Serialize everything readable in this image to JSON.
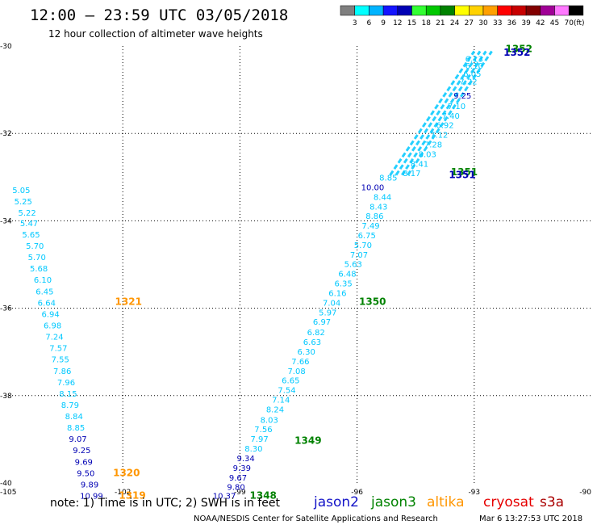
{
  "header": {
    "title": "12:00 – 23:59 UTC 03/05/2018",
    "subtitle": "12 hour collection of altimeter wave heights"
  },
  "colorbar": {
    "unit": "(ft)",
    "labels": [
      "3",
      "6",
      "9",
      "12",
      "15",
      "18",
      "21",
      "24",
      "27",
      "30",
      "33",
      "36",
      "39",
      "42",
      "45",
      "70"
    ],
    "colors": [
      "#7f7f7f",
      "#00ffff",
      "#00b4ff",
      "#1414ff",
      "#0000b4",
      "#32ff32",
      "#00c800",
      "#008200",
      "#ffff00",
      "#ffd200",
      "#ffa000",
      "#ff0000",
      "#c80000",
      "#820000",
      "#a00096",
      "#ff78ff",
      "#000000"
    ]
  },
  "footer": {
    "note": "note: 1) Time is in UTC; 2) SWH is in feet",
    "credit": "NOAA/NESDIS Center for Satellite Applications and Research",
    "timestamp": "Mar  6 13:27:53 UTC 2018"
  },
  "legend": [
    {
      "name": "jason2",
      "color": "#1414c8"
    },
    {
      "name": "jason3",
      "color": "#008200"
    },
    {
      "name": "altika",
      "color": "#ff9600"
    },
    {
      "name": "cryosat",
      "color": "#e60000"
    },
    {
      "name": "s3a",
      "color": "#aa0000"
    }
  ],
  "chart_data": {
    "type": "scatter",
    "xlim": [
      -105,
      -90
    ],
    "ylim": [
      -40,
      -30
    ],
    "x_ticks": [
      "-105",
      "-102",
      "-99",
      "-96",
      "-93",
      "-90"
    ],
    "y_ticks": [
      "-30",
      "-32",
      "-34",
      "-36",
      "-38",
      "-40"
    ],
    "grid": "dotted at -102, -99, -96, -93 and -32, -34, -36, -38",
    "colors": {
      "cyan": "#00c8ff",
      "blue": "#0000b4",
      "green": "#008200",
      "orange": "#ff9600"
    },
    "track_west": [
      {
        "lon": -104.6,
        "lat": -33.36,
        "value": "5.05",
        "c": "cyan"
      },
      {
        "lon": -104.55,
        "lat": -33.62,
        "value": "5.25",
        "c": "cyan"
      },
      {
        "lon": -104.45,
        "lat": -33.88,
        "value": "5.22",
        "c": "cyan"
      },
      {
        "lon": -104.4,
        "lat": -34.12,
        "value": "5.47",
        "c": "cyan"
      },
      {
        "lon": -104.35,
        "lat": -34.38,
        "value": "5.65",
        "c": "cyan"
      },
      {
        "lon": -104.25,
        "lat": -34.64,
        "value": "5.70",
        "c": "cyan"
      },
      {
        "lon": -104.2,
        "lat": -34.9,
        "value": "5.70",
        "c": "cyan"
      },
      {
        "lon": -104.15,
        "lat": -35.16,
        "value": "5.68",
        "c": "cyan"
      },
      {
        "lon": -104.05,
        "lat": -35.42,
        "value": "6.10",
        "c": "cyan"
      },
      {
        "lon": -104.0,
        "lat": -35.68,
        "value": "6.45",
        "c": "cyan"
      },
      {
        "lon": -103.95,
        "lat": -35.94,
        "value": "6.64",
        "c": "cyan"
      },
      {
        "lon": -103.85,
        "lat": -36.2,
        "value": "6.94",
        "c": "cyan"
      },
      {
        "lon": -103.8,
        "lat": -36.46,
        "value": "6.98",
        "c": "cyan"
      },
      {
        "lon": -103.75,
        "lat": -36.72,
        "value": "7.24",
        "c": "cyan"
      },
      {
        "lon": -103.65,
        "lat": -36.98,
        "value": "7.57",
        "c": "cyan"
      },
      {
        "lon": -103.6,
        "lat": -37.24,
        "value": "7.55",
        "c": "cyan"
      },
      {
        "lon": -103.55,
        "lat": -37.5,
        "value": "7.86",
        "c": "cyan"
      },
      {
        "lon": -103.45,
        "lat": -37.76,
        "value": "7.96",
        "c": "cyan"
      },
      {
        "lon": -103.4,
        "lat": -38.02,
        "value": "8.15",
        "c": "cyan"
      },
      {
        "lon": -103.35,
        "lat": -38.28,
        "value": "8.79",
        "c": "cyan"
      },
      {
        "lon": -103.25,
        "lat": -38.54,
        "value": "8.84",
        "c": "cyan"
      },
      {
        "lon": -103.2,
        "lat": -38.8,
        "value": "8.85",
        "c": "cyan"
      },
      {
        "lon": -103.15,
        "lat": -39.06,
        "value": "9.07",
        "c": "blue"
      },
      {
        "lon": -103.05,
        "lat": -39.32,
        "value": "9.25",
        "c": "blue"
      },
      {
        "lon": -103.0,
        "lat": -39.58,
        "value": "9.69",
        "c": "blue"
      },
      {
        "lon": -102.95,
        "lat": -39.84,
        "value": "9.50",
        "c": "blue"
      },
      {
        "lon": -102.85,
        "lat": -40.1,
        "value": "9.89",
        "c": "blue"
      },
      {
        "lon": -102.8,
        "lat": -40.36,
        "value": "10.99",
        "c": "blue"
      }
    ],
    "track_east": [
      {
        "lon": -99.4,
        "lat": -40.36,
        "value": "10.37",
        "c": "blue"
      },
      {
        "lon": -99.1,
        "lat": -40.16,
        "value": "9.80",
        "c": "blue"
      },
      {
        "lon": -99.05,
        "lat": -39.94,
        "value": "9.67",
        "c": "blue"
      },
      {
        "lon": -98.95,
        "lat": -39.72,
        "value": "9.39",
        "c": "blue"
      },
      {
        "lon": -98.85,
        "lat": -39.5,
        "value": "9.34",
        "c": "blue"
      },
      {
        "lon": -98.65,
        "lat": -39.28,
        "value": "8.30",
        "c": "cyan"
      },
      {
        "lon": -98.5,
        "lat": -39.06,
        "value": "7.97",
        "c": "cyan"
      },
      {
        "lon": -98.4,
        "lat": -38.84,
        "value": "7.56",
        "c": "cyan"
      },
      {
        "lon": -98.25,
        "lat": -38.62,
        "value": "8.03",
        "c": "cyan"
      },
      {
        "lon": -98.1,
        "lat": -38.38,
        "value": "8.24",
        "c": "cyan"
      },
      {
        "lon": -97.95,
        "lat": -38.16,
        "value": "7.14",
        "c": "cyan"
      },
      {
        "lon": -97.8,
        "lat": -37.94,
        "value": "7.54",
        "c": "cyan"
      },
      {
        "lon": -97.7,
        "lat": -37.72,
        "value": "6.65",
        "c": "cyan"
      },
      {
        "lon": -97.55,
        "lat": -37.5,
        "value": "7.08",
        "c": "cyan"
      },
      {
        "lon": -97.45,
        "lat": -37.28,
        "value": "7.66",
        "c": "cyan"
      },
      {
        "lon": -97.3,
        "lat": -37.06,
        "value": "6.30",
        "c": "cyan"
      },
      {
        "lon": -97.15,
        "lat": -36.84,
        "value": "6.63",
        "c": "cyan"
      },
      {
        "lon": -97.05,
        "lat": -36.62,
        "value": "6.82",
        "c": "cyan"
      },
      {
        "lon": -96.9,
        "lat": -36.38,
        "value": "6.97",
        "c": "cyan"
      },
      {
        "lon": -96.75,
        "lat": -36.16,
        "value": "5.97",
        "c": "cyan"
      },
      {
        "lon": -96.65,
        "lat": -35.94,
        "value": "7.04",
        "c": "cyan"
      },
      {
        "lon": -96.5,
        "lat": -35.72,
        "value": "6.16",
        "c": "cyan"
      },
      {
        "lon": -96.35,
        "lat": -35.5,
        "value": "6.35",
        "c": "cyan"
      },
      {
        "lon": -96.25,
        "lat": -35.28,
        "value": "6.48",
        "c": "cyan"
      },
      {
        "lon": -96.1,
        "lat": -35.06,
        "value": "5.63",
        "c": "cyan"
      },
      {
        "lon": -95.95,
        "lat": -34.84,
        "value": "7.07",
        "c": "cyan"
      },
      {
        "lon": -95.85,
        "lat": -34.62,
        "value": "5.70",
        "c": "cyan"
      },
      {
        "lon": -95.75,
        "lat": -34.4,
        "value": "6.75",
        "c": "cyan"
      },
      {
        "lon": -95.65,
        "lat": -34.18,
        "value": "7.49",
        "c": "cyan"
      },
      {
        "lon": -95.55,
        "lat": -33.96,
        "value": "8.86",
        "c": "cyan"
      },
      {
        "lon": -95.45,
        "lat": -33.74,
        "value": "8.43",
        "c": "cyan"
      },
      {
        "lon": -95.35,
        "lat": -33.52,
        "value": "8.44",
        "c": "cyan"
      },
      {
        "lon": -95.6,
        "lat": -33.3,
        "value": "10.00",
        "c": "blue"
      },
      {
        "lon": -95.2,
        "lat": -33.08,
        "value": "8.85",
        "c": "cyan"
      }
    ],
    "dense_tracks": {
      "color": "cyan",
      "lines": [
        {
          "lon0": -95.15,
          "lat0": -32.95,
          "lon1": -93.0,
          "lat1": -30.12
        },
        {
          "lon0": -95.0,
          "lat0": -32.95,
          "lon1": -92.85,
          "lat1": -30.12
        },
        {
          "lon0": -94.85,
          "lat0": -32.95,
          "lon1": -92.7,
          "lat1": -30.12
        },
        {
          "lon0": -94.7,
          "lat0": -32.95,
          "lon1": -92.55,
          "lat1": -30.12
        }
      ],
      "labels": [
        {
          "lon": -93.0,
          "lat": -30.36,
          "value": "6.13"
        },
        {
          "lon": -93.0,
          "lat": -30.52,
          "value": "6.10"
        },
        {
          "lon": -93.05,
          "lat": -30.7,
          "value": "6.05"
        },
        {
          "lon": -93.15,
          "lat": -30.88,
          "value": "7.22"
        },
        {
          "lon": -93.3,
          "lat": -31.2,
          "value": "9.25",
          "c": "blue"
        },
        {
          "lon": -93.45,
          "lat": -31.44,
          "value": "7.10"
        },
        {
          "lon": -93.6,
          "lat": -31.66,
          "value": "7.40"
        },
        {
          "lon": -93.75,
          "lat": -31.88,
          "value": "6.92"
        },
        {
          "lon": -93.9,
          "lat": -32.1,
          "value": "7.12"
        },
        {
          "lon": -94.05,
          "lat": -32.32,
          "value": "7.28"
        },
        {
          "lon": -94.2,
          "lat": -32.54,
          "value": "8.03"
        },
        {
          "lon": -94.4,
          "lat": -32.76,
          "value": "8.41"
        },
        {
          "lon": -94.6,
          "lat": -32.98,
          "value": "8.17"
        }
      ]
    },
    "pass_ids": [
      {
        "lon": -102.2,
        "lat": -35.92,
        "text": "1321",
        "c": "orange"
      },
      {
        "lon": -102.25,
        "lat": -39.84,
        "text": "1320",
        "c": "orange"
      },
      {
        "lon": -102.1,
        "lat": -40.36,
        "text": "1319",
        "c": "orange"
      },
      {
        "lon": -98.75,
        "lat": -40.36,
        "text": "1348",
        "c": "green"
      },
      {
        "lon": -97.6,
        "lat": -39.1,
        "text": "1349",
        "c": "green"
      },
      {
        "lon": -95.95,
        "lat": -35.92,
        "text": "1350",
        "c": "green"
      },
      {
        "lon": -93.6,
        "lat": -32.96,
        "text": "1351",
        "c": "green"
      },
      {
        "lon": -93.65,
        "lat": -33.02,
        "text": "1351",
        "c": "blue"
      },
      {
        "lon": -92.2,
        "lat": -30.14,
        "text": "1352",
        "c": "green"
      },
      {
        "lon": -92.25,
        "lat": -30.22,
        "text": "1352",
        "c": "blue"
      }
    ]
  }
}
